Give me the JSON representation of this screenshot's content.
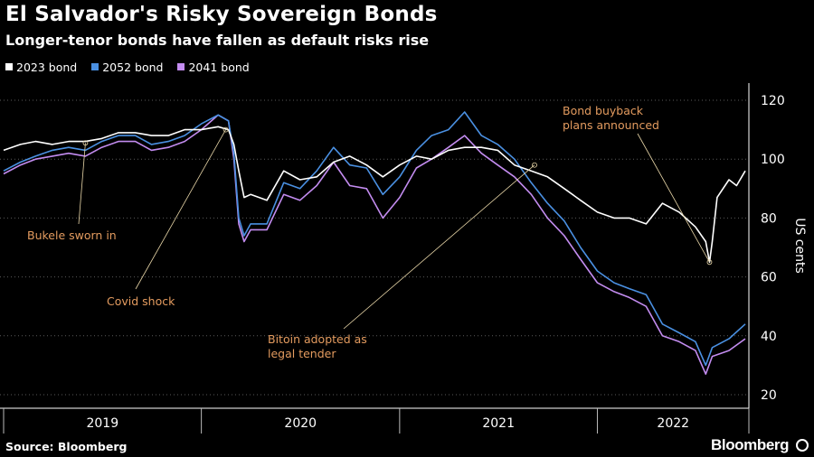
{
  "chart_data": {
    "type": "line",
    "title": "El Salvador's Risky Sovereign Bonds",
    "subtitle": "Longer-tenor bonds have fallen as default risks rise",
    "ylabel": "US cents",
    "ylim": [
      20,
      125
    ],
    "yticks": [
      20,
      40,
      60,
      80,
      100,
      120
    ],
    "xticks": [
      "2019",
      "2020",
      "2021",
      "2022"
    ],
    "xlim": [
      "2019-01-01",
      "2022-10-01"
    ],
    "grid": "horizontal dotted",
    "legend": "top-left",
    "series": [
      {
        "name": "2023 bond",
        "color": "#ffffff",
        "x": [
          "2019-01-01",
          "2019-02-01",
          "2019-03-01",
          "2019-04-01",
          "2019-05-01",
          "2019-06-01",
          "2019-07-01",
          "2019-08-01",
          "2019-09-01",
          "2019-10-01",
          "2019-11-01",
          "2019-12-01",
          "2020-01-01",
          "2020-02-01",
          "2020-02-20",
          "2020-03-01",
          "2020-03-10",
          "2020-03-20",
          "2020-04-01",
          "2020-05-01",
          "2020-06-01",
          "2020-07-01",
          "2020-08-01",
          "2020-09-01",
          "2020-10-01",
          "2020-11-01",
          "2020-12-01",
          "2021-01-01",
          "2021-02-01",
          "2021-03-01",
          "2021-04-01",
          "2021-05-01",
          "2021-06-01",
          "2021-07-01",
          "2021-08-01",
          "2021-09-01",
          "2021-10-01",
          "2021-11-01",
          "2021-12-01",
          "2022-01-01",
          "2022-02-01",
          "2022-03-01",
          "2022-04-01",
          "2022-05-01",
          "2022-06-01",
          "2022-07-01",
          "2022-07-20",
          "2022-07-27",
          "2022-08-01",
          "2022-08-10",
          "2022-09-01",
          "2022-09-15",
          "2022-10-01"
        ],
        "values": [
          103,
          105,
          106,
          105,
          106,
          106,
          107,
          109,
          109,
          108,
          108,
          110,
          110,
          111,
          110,
          105,
          96,
          87,
          88,
          86,
          96,
          93,
          94,
          99,
          101,
          98,
          94,
          98,
          101,
          100,
          103,
          104,
          104,
          103,
          98,
          96,
          94,
          90,
          86,
          82,
          80,
          80,
          78,
          85,
          82,
          77,
          72,
          65,
          72,
          87,
          93,
          91,
          96
        ]
      },
      {
        "name": "2052 bond",
        "color": "#4a90e2",
        "x": [
          "2019-01-01",
          "2019-02-01",
          "2019-03-01",
          "2019-04-01",
          "2019-05-01",
          "2019-06-01",
          "2019-07-01",
          "2019-08-01",
          "2019-09-01",
          "2019-10-01",
          "2019-11-01",
          "2019-12-01",
          "2020-01-01",
          "2020-02-01",
          "2020-02-20",
          "2020-03-01",
          "2020-03-10",
          "2020-03-20",
          "2020-04-01",
          "2020-05-01",
          "2020-06-01",
          "2020-07-01",
          "2020-08-01",
          "2020-09-01",
          "2020-10-01",
          "2020-11-01",
          "2020-12-01",
          "2021-01-01",
          "2021-02-01",
          "2021-03-01",
          "2021-04-01",
          "2021-05-01",
          "2021-06-01",
          "2021-07-01",
          "2021-08-01",
          "2021-09-01",
          "2021-10-01",
          "2021-11-01",
          "2021-12-01",
          "2022-01-01",
          "2022-02-01",
          "2022-03-01",
          "2022-04-01",
          "2022-05-01",
          "2022-06-01",
          "2022-07-01",
          "2022-07-20",
          "2022-08-01",
          "2022-09-01",
          "2022-10-01"
        ],
        "values": [
          96,
          99,
          101,
          103,
          104,
          103,
          106,
          108,
          108,
          105,
          106,
          108,
          112,
          115,
          113,
          102,
          80,
          74,
          78,
          78,
          92,
          90,
          96,
          104,
          98,
          97,
          88,
          94,
          103,
          108,
          110,
          116,
          108,
          105,
          100,
          92,
          85,
          79,
          70,
          62,
          58,
          56,
          54,
          44,
          41,
          38,
          30,
          36,
          39,
          44
        ]
      },
      {
        "name": "2041 bond",
        "color": "#c38cf0",
        "x": [
          "2019-01-01",
          "2019-02-01",
          "2019-03-01",
          "2019-04-01",
          "2019-05-01",
          "2019-06-01",
          "2019-07-01",
          "2019-08-01",
          "2019-09-01",
          "2019-10-01",
          "2019-11-01",
          "2019-12-01",
          "2020-01-01",
          "2020-02-01",
          "2020-02-20",
          "2020-03-01",
          "2020-03-10",
          "2020-03-20",
          "2020-04-01",
          "2020-05-01",
          "2020-06-01",
          "2020-07-01",
          "2020-08-01",
          "2020-09-01",
          "2020-10-01",
          "2020-11-01",
          "2020-12-01",
          "2021-01-01",
          "2021-02-01",
          "2021-03-01",
          "2021-04-01",
          "2021-05-01",
          "2021-06-01",
          "2021-07-01",
          "2021-08-01",
          "2021-09-01",
          "2021-10-01",
          "2021-11-01",
          "2021-12-01",
          "2022-01-01",
          "2022-02-01",
          "2022-03-01",
          "2022-04-01",
          "2022-05-01",
          "2022-06-01",
          "2022-07-01",
          "2022-07-20",
          "2022-08-01",
          "2022-09-01",
          "2022-10-01"
        ],
        "values": [
          95,
          98,
          100,
          101,
          102,
          101,
          104,
          106,
          106,
          103,
          104,
          106,
          110,
          115,
          113,
          100,
          78,
          72,
          76,
          76,
          88,
          86,
          91,
          99,
          91,
          90,
          80,
          87,
          97,
          100,
          104,
          108,
          102,
          98,
          94,
          88,
          80,
          74,
          66,
          58,
          55,
          53,
          50,
          40,
          38,
          35,
          27,
          33,
          35,
          39
        ]
      }
    ],
    "annotations": [
      {
        "text": "Bukele sworn in",
        "date": "2019-06-01",
        "value": 105.5
      },
      {
        "text": "Covid shock",
        "date": "2020-02-15",
        "value": 110
      },
      {
        "text": "Bitoin adopted as|legal tender",
        "date": "2021-09-07",
        "value": 98
      },
      {
        "text": "Bond buyback|plans announced",
        "date": "2022-07-27",
        "value": 65
      }
    ]
  },
  "footer": {
    "source": "Source: Bloomberg",
    "brand": "Bloomberg"
  }
}
